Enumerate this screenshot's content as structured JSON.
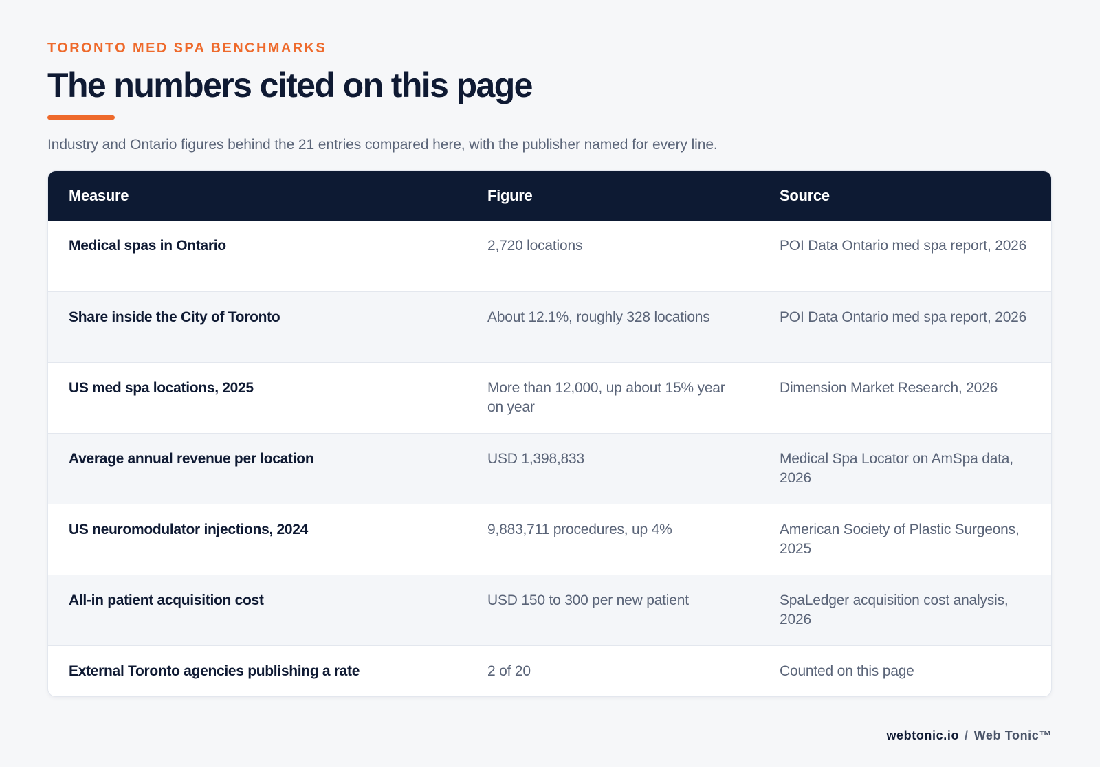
{
  "header": {
    "eyebrow": "TORONTO MED SPA BENCHMARKS",
    "title": "The numbers cited on this page",
    "subtitle": "Industry and Ontario figures behind the 21 entries compared here, with the publisher named for every line."
  },
  "table": {
    "columns": [
      "Measure",
      "Figure",
      "Source"
    ],
    "rows": [
      {
        "measure": "Medical spas in Ontario",
        "figure": "2,720 locations",
        "source": "POI Data Ontario med spa report, 2026"
      },
      {
        "measure": "Share inside the City of Toronto",
        "figure": "About 12.1%, roughly 328 locations",
        "source": "POI Data Ontario med spa report, 2026"
      },
      {
        "measure": "US med spa locations, 2025",
        "figure": "More than 12,000, up about 15% year on year",
        "source": "Dimension Market Research, 2026"
      },
      {
        "measure": "Average annual revenue per location",
        "figure": "USD 1,398,833",
        "source": "Medical Spa Locator on AmSpa data, 2026"
      },
      {
        "measure": "US neuromodulator injections, 2024",
        "figure": "9,883,711 procedures, up 4%",
        "source": "American Society of Plastic Surgeons, 2025"
      },
      {
        "measure": "All-in patient acquisition cost",
        "figure": "USD 150 to 300 per new patient",
        "source": "SpaLedger acquisition cost analysis, 2026"
      },
      {
        "measure": "External Toronto agencies publishing a rate",
        "figure": "2 of 20",
        "source": "Counted on this page"
      }
    ]
  },
  "footer": {
    "domain": "webtonic.io",
    "separator": "/",
    "brand": "Web Tonic™"
  },
  "colors": {
    "accent": "#ee6a2c",
    "header_bg": "#0d1a33",
    "text_dark": "#0f1a33",
    "text_muted": "#5a6478"
  }
}
